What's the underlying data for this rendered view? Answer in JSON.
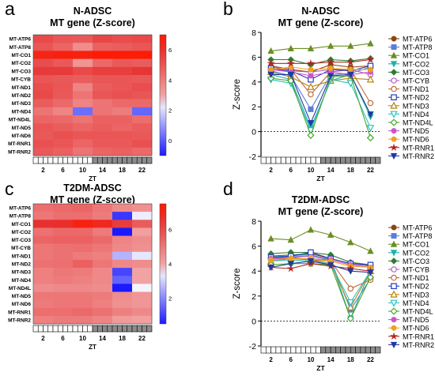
{
  "panel_letters": [
    "a",
    "b",
    "c",
    "d"
  ],
  "colors": {
    "heat_min": "#1a1aff",
    "heat_mid": "#ffffff",
    "heat_max": "#b04a2a",
    "heat_base": "#e63232",
    "light_box": "#ffffff",
    "dark_box": "#8c8c8c",
    "series": [
      "#8b4513",
      "#5a7dd8",
      "#6b8e23",
      "#20b2aa",
      "#2e7d32",
      "#b05fc0",
      "#c06a3a",
      "#2a3cc0",
      "#b8860b",
      "#2bc4c4",
      "#49a52f",
      "#cc55cc",
      "#f0a020",
      "#b22222",
      "#1f3a9e"
    ]
  },
  "chart_data": [
    {
      "type": "heatmap",
      "title": "N-ADSC",
      "subtitle": "MT gene (Z-score)",
      "xlabel": "ZT",
      "x_ticks": [
        "2",
        "6",
        "10",
        "14",
        "18",
        "22"
      ],
      "rows": [
        "MT-ATP6",
        "MT-ATP8",
        "MT-CO1",
        "MT-CO2",
        "MT-CO3",
        "MT-CYB",
        "MT-ND1",
        "MT-ND2",
        "MT-ND3",
        "MT-ND4",
        "MT-ND4L",
        "MT-ND5",
        "MT-ND6",
        "MT-RNR1",
        "MT-RNR2"
      ],
      "colorbar_ticks": [
        "6",
        "4",
        "2",
        "0"
      ],
      "range": [
        -1,
        7
      ],
      "values": [
        [
          5.3,
          5.0,
          4.9,
          5.4,
          5.2,
          5.3
        ],
        [
          5.0,
          4.6,
          3.6,
          4.7,
          4.8,
          5.0
        ],
        [
          6.5,
          6.7,
          6.7,
          6.9,
          6.9,
          6.9
        ],
        [
          5.2,
          4.9,
          3.4,
          4.5,
          4.9,
          4.8
        ],
        [
          5.7,
          5.7,
          5.3,
          5.6,
          5.6,
          5.8
        ],
        [
          5.0,
          4.9,
          4.8,
          5.0,
          5.0,
          4.9
        ],
        [
          5.2,
          5.0,
          3.8,
          4.8,
          5.0,
          5.2
        ],
        [
          5.3,
          4.9,
          4.2,
          5.0,
          5.1,
          5.0
        ],
        [
          4.8,
          4.5,
          3.8,
          4.2,
          4.5,
          4.5
        ],
        [
          4.2,
          3.8,
          0.3,
          4.2,
          4.0,
          0.2
        ],
        [
          4.6,
          4.5,
          4.2,
          4.7,
          4.7,
          4.4
        ],
        [
          5.0,
          4.8,
          4.6,
          4.8,
          4.6,
          4.8
        ],
        [
          4.9,
          5.1,
          5.0,
          5.0,
          5.0,
          4.9
        ],
        [
          5.1,
          5.0,
          4.6,
          4.9,
          4.9,
          5.1
        ],
        [
          4.9,
          4.7,
          4.2,
          4.6,
          4.7,
          4.5
        ]
      ]
    },
    {
      "type": "line",
      "title": "N-ADSC",
      "subtitle": "MT gene (Z-score)",
      "xlabel": "ZT",
      "ylabel": "Z-score",
      "x": [
        2,
        6,
        10,
        14,
        18,
        22
      ],
      "x_ticks": [
        "2",
        "6",
        "10",
        "14",
        "18",
        "22"
      ],
      "ylim": [
        -2,
        8
      ],
      "y_ticks": [
        "-2",
        "0",
        "2",
        "4",
        "6",
        "8"
      ],
      "dark_phase_from": 12,
      "series": [
        {
          "name": "MT-ATP6",
          "values": [
            5.3,
            5.0,
            4.8,
            5.4,
            5.2,
            5.3
          ]
        },
        {
          "name": "MT-ATP8",
          "values": [
            4.9,
            4.5,
            1.8,
            4.6,
            4.7,
            5.2
          ]
        },
        {
          "name": "MT-CO1",
          "values": [
            6.5,
            6.7,
            6.7,
            6.9,
            6.9,
            7.1
          ]
        },
        {
          "name": "MT-CO2",
          "values": [
            4.6,
            4.2,
            0.3,
            4.1,
            4.6,
            1.2
          ]
        },
        {
          "name": "MT-CO3",
          "values": [
            5.8,
            5.8,
            5.4,
            5.8,
            5.7,
            5.9
          ]
        },
        {
          "name": "MT-CYB",
          "values": [
            5.0,
            4.9,
            4.8,
            5.0,
            5.0,
            4.6
          ]
        },
        {
          "name": "MT-ND1",
          "values": [
            5.2,
            5.0,
            3.0,
            4.8,
            5.0,
            2.3
          ]
        },
        {
          "name": "MT-ND2",
          "values": [
            5.1,
            4.9,
            4.2,
            5.0,
            4.9,
            5.3
          ]
        },
        {
          "name": "MT-ND3",
          "values": [
            4.8,
            4.4,
            3.6,
            4.1,
            4.3,
            4.2
          ]
        },
        {
          "name": "MT-ND4",
          "values": [
            4.2,
            3.9,
            0.1,
            4.2,
            3.9,
            0.3
          ]
        },
        {
          "name": "MT-ND4L",
          "values": [
            4.3,
            4.1,
            -0.3,
            4.4,
            4.5,
            -0.5
          ]
        },
        {
          "name": "MT-ND5",
          "values": [
            5.0,
            4.8,
            4.5,
            4.8,
            4.6,
            4.8
          ]
        },
        {
          "name": "MT-ND6",
          "values": [
            5.0,
            5.2,
            5.0,
            5.1,
            5.0,
            5.0
          ]
        },
        {
          "name": "MT-RNR1",
          "values": [
            5.5,
            5.5,
            5.5,
            5.6,
            5.6,
            5.8
          ]
        },
        {
          "name": "MT-RNR2",
          "values": [
            4.6,
            4.6,
            0.7,
            4.5,
            4.6,
            1.4
          ]
        }
      ]
    },
    {
      "type": "heatmap",
      "title": "T2DM-ADSC",
      "subtitle": "MT gene (Z-score)",
      "xlabel": "ZT",
      "x_ticks": [
        "2",
        "6",
        "10",
        "14",
        "18",
        "22"
      ],
      "rows": [
        "MT-ATP6",
        "MT-ATP8",
        "MT-CO1",
        "MT-CO2",
        "MT-CO3",
        "MT-CYB",
        "MT-ND1",
        "MT-ND2",
        "MT-ND3",
        "MT-ND4",
        "MT-ND4L",
        "MT-ND5",
        "MT-ND6",
        "MT-RNR1",
        "MT-RNR2"
      ],
      "colorbar_ticks": [
        "6",
        "4",
        "2"
      ],
      "range": [
        0.5,
        7.5
      ],
      "values": [
        [
          5.2,
          5.3,
          5.4,
          5.0,
          4.6,
          4.4
        ],
        [
          5.0,
          5.2,
          5.2,
          4.9,
          0.9,
          3.4
        ],
        [
          6.6,
          6.7,
          7.2,
          6.9,
          6.3,
          5.6
        ],
        [
          5.1,
          5.3,
          5.3,
          4.9,
          0.2,
          4.1
        ],
        [
          5.4,
          5.5,
          5.5,
          5.3,
          4.7,
          4.5
        ],
        [
          5.0,
          5.1,
          5.2,
          5.0,
          4.6,
          4.4
        ],
        [
          5.0,
          5.1,
          4.9,
          4.8,
          2.6,
          3.3
        ],
        [
          5.1,
          5.2,
          5.5,
          5.0,
          4.6,
          4.5
        ],
        [
          4.8,
          5.0,
          4.9,
          4.6,
          1.1,
          4.0
        ],
        [
          4.8,
          4.9,
          4.8,
          4.6,
          1.5,
          4.0
        ],
        [
          4.5,
          4.6,
          4.6,
          4.5,
          0.2,
          3.5
        ],
        [
          5.0,
          5.0,
          5.0,
          4.9,
          4.5,
          4.3
        ],
        [
          4.9,
          5.0,
          5.0,
          4.8,
          4.4,
          4.3
        ],
        [
          5.2,
          5.2,
          5.3,
          5.1,
          4.8,
          4.6
        ],
        [
          4.8,
          4.9,
          4.9,
          4.7,
          4.2,
          4.1
        ]
      ]
    },
    {
      "type": "line",
      "title": "T2DM-ADSC",
      "subtitle": "MT gene (Z-score)",
      "xlabel": "ZT",
      "ylabel": "Z-score",
      "x": [
        2,
        6,
        10,
        14,
        18,
        22
      ],
      "x_ticks": [
        "2",
        "6",
        "10",
        "14",
        "18",
        "22"
      ],
      "ylim": [
        -2,
        8
      ],
      "y_ticks": [
        "-2",
        "0",
        "2",
        "4",
        "6",
        "8"
      ],
      "dark_phase_from": 12,
      "series": [
        {
          "name": "MT-ATP6",
          "values": [
            5.2,
            5.3,
            5.4,
            5.0,
            4.6,
            4.4
          ]
        },
        {
          "name": "MT-ATP8",
          "values": [
            5.0,
            5.2,
            5.2,
            4.9,
            0.9,
            3.4
          ]
        },
        {
          "name": "MT-CO1",
          "values": [
            6.6,
            6.5,
            7.3,
            6.9,
            6.3,
            5.6
          ]
        },
        {
          "name": "MT-CO2",
          "values": [
            5.1,
            5.3,
            5.3,
            4.9,
            0.2,
            4.1
          ]
        },
        {
          "name": "MT-CO3",
          "values": [
            5.4,
            5.5,
            5.5,
            5.3,
            4.7,
            4.5
          ]
        },
        {
          "name": "MT-CYB",
          "values": [
            5.0,
            5.1,
            5.2,
            5.0,
            4.6,
            4.4
          ]
        },
        {
          "name": "MT-ND1",
          "values": [
            5.0,
            5.1,
            4.9,
            4.8,
            2.6,
            3.3
          ]
        },
        {
          "name": "MT-ND2",
          "values": [
            5.1,
            5.2,
            5.5,
            5.0,
            4.6,
            4.5
          ]
        },
        {
          "name": "MT-ND3",
          "values": [
            4.8,
            5.0,
            4.9,
            4.6,
            1.1,
            4.0
          ]
        },
        {
          "name": "MT-ND4",
          "values": [
            4.8,
            4.9,
            4.8,
            4.6,
            1.5,
            4.0
          ]
        },
        {
          "name": "MT-ND4L",
          "values": [
            4.5,
            4.6,
            4.6,
            4.5,
            0.2,
            3.5
          ]
        },
        {
          "name": "MT-ND5",
          "values": [
            5.0,
            5.0,
            5.0,
            4.9,
            4.5,
            4.3
          ]
        },
        {
          "name": "MT-ND6",
          "values": [
            4.9,
            5.0,
            5.0,
            4.8,
            4.4,
            4.3
          ]
        },
        {
          "name": "MT-RNR1",
          "values": [
            4.3,
            4.2,
            4.6,
            4.4,
            4.2,
            4.0
          ]
        },
        {
          "name": "MT-RNR2",
          "values": [
            4.3,
            4.6,
            4.8,
            4.5,
            4.0,
            3.9
          ]
        }
      ]
    }
  ]
}
